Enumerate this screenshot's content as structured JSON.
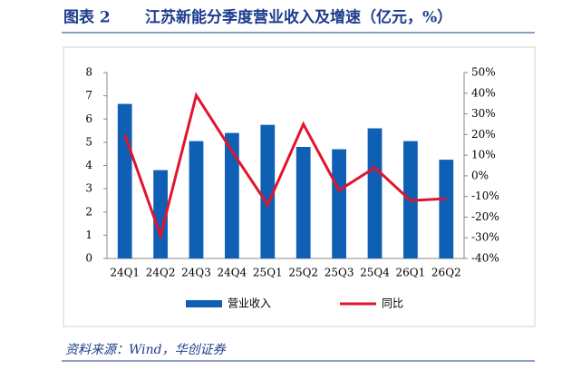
{
  "chart_data": {
    "type": "bar",
    "figure_label": "图表 2",
    "title": "江苏新能分季度营业收入及增速（亿元，%）",
    "source": "资料来源：Wind，华创证券",
    "categories": [
      "24Q1",
      "24Q2",
      "24Q3",
      "24Q4",
      "25Q1",
      "25Q2",
      "25Q3",
      "25Q4",
      "26Q1",
      "26Q2"
    ],
    "series": [
      {
        "name": "营业收入",
        "type": "bar",
        "color": "#0f5fb5",
        "axis": "y",
        "values": [
          6.65,
          3.8,
          5.05,
          5.4,
          5.75,
          4.8,
          4.7,
          5.6,
          5.05,
          4.25
        ]
      },
      {
        "name": "同比",
        "type": "line",
        "color": "#e3142c",
        "axis": "y2",
        "values": [
          20,
          -29,
          39,
          12,
          -14,
          25,
          -7,
          4,
          -12,
          -11
        ]
      }
    ],
    "ylim": [
      0,
      8
    ],
    "yticks": [
      0,
      1,
      2,
      3,
      4,
      5,
      6,
      7,
      8
    ],
    "y2lim": [
      -40,
      50
    ],
    "y2ticks": [
      {
        "value": -40,
        "label": "-40%"
      },
      {
        "value": -30,
        "label": "-30%"
      },
      {
        "value": -20,
        "label": "-20%"
      },
      {
        "value": -10,
        "label": "-10%"
      },
      {
        "value": 0,
        "label": "0%"
      },
      {
        "value": 10,
        "label": "10%"
      },
      {
        "value": 20,
        "label": "20%"
      },
      {
        "value": 30,
        "label": "30%"
      },
      {
        "value": 40,
        "label": "40%"
      },
      {
        "value": 50,
        "label": "50%"
      }
    ],
    "grid": false
  }
}
